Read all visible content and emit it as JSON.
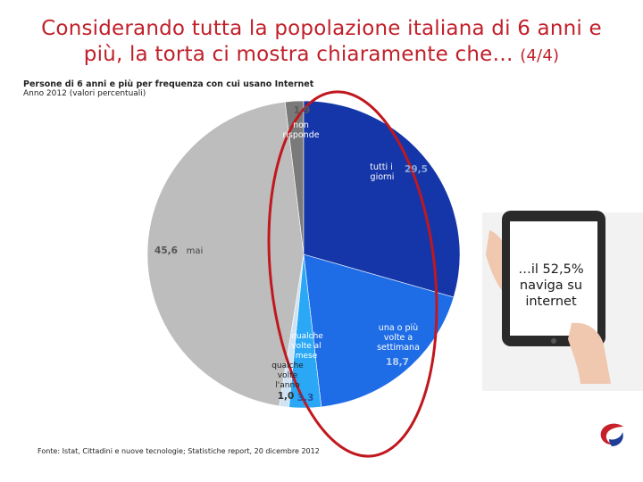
{
  "header": {
    "title_line1": "Considerando tutta la popolazione italiana di 6 anni e",
    "title_line2": "più, la torta ci mostra chiaramente che…",
    "title_page": "(4/4)"
  },
  "chart_data": {
    "type": "pie",
    "title": "Persone di 6 anni e più per frequenza con cui usano Internet",
    "subtitle": "Anno 2012 (valori percentuali)",
    "slices": [
      {
        "label": "non risponde",
        "value": 1.9,
        "color": "#7a7a7a"
      },
      {
        "label": "tutti i giorni",
        "value": 29.5,
        "color": "#1536a8"
      },
      {
        "label": "una o più volte a settimana",
        "value": 18.7,
        "color": "#1f6de6"
      },
      {
        "label": "qualche volta al mese",
        "value": 3.3,
        "color": "#2aa8f5"
      },
      {
        "label": "qualche volta l'anno",
        "value": 1.0,
        "color": "#cfe3f5"
      },
      {
        "label": "mai",
        "value": 45.6,
        "color": "#bdbdbd"
      }
    ],
    "labels": {
      "non_risponde_val": "1,9",
      "non_risponde_1": "non",
      "non_risponde_2": "risponde",
      "tutti_1": "tutti i",
      "tutti_2": "giorni",
      "tutti_val": "29,5",
      "settimana_1": "una o più",
      "settimana_2": "volte a",
      "settimana_3": "settimana",
      "settimana_val": "18,7",
      "mese_1": "qualche",
      "mese_2": "volte al",
      "mese_3": "mese",
      "mese_val": "3,3",
      "anno_1": "qualche",
      "anno_2": "volte",
      "anno_3": "l'anno",
      "anno_val": "1,0",
      "mai_val": "45,6",
      "mai_label": "mai"
    }
  },
  "callout": {
    "line1": "…il 52,5%",
    "line2": "naviga su",
    "line3": "internet"
  },
  "source": "Fonte: Istat, Cittadini e nuove tecnologie; Statistiche report, 20 dicembre 2012"
}
